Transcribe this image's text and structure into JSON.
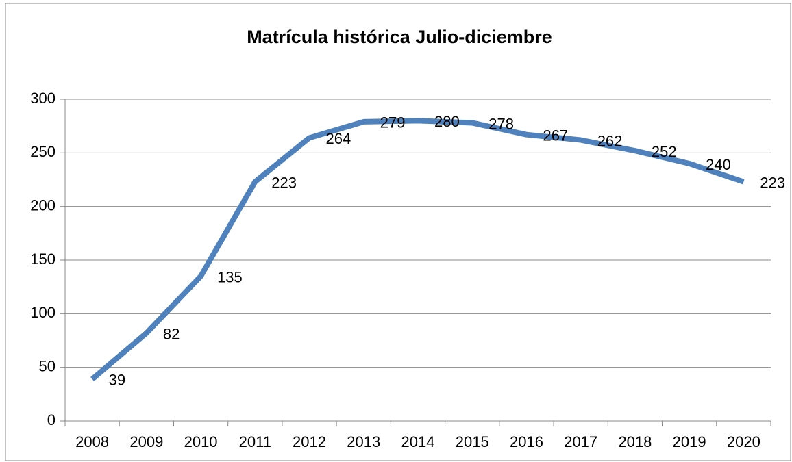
{
  "chart_data": {
    "type": "line",
    "title": "Matrícula histórica Julio-diciembre",
    "categories": [
      "2008",
      "2009",
      "2010",
      "2011",
      "2012",
      "2013",
      "2014",
      "2015",
      "2016",
      "2017",
      "2018",
      "2019",
      "2020"
    ],
    "values": [
      39,
      82,
      135,
      223,
      264,
      279,
      280,
      278,
      267,
      262,
      252,
      240,
      223
    ],
    "color": "#4f81bd",
    "ylim": [
      0,
      300
    ],
    "yticks": [
      0,
      50,
      100,
      150,
      200,
      250,
      300
    ],
    "grid": true
  }
}
